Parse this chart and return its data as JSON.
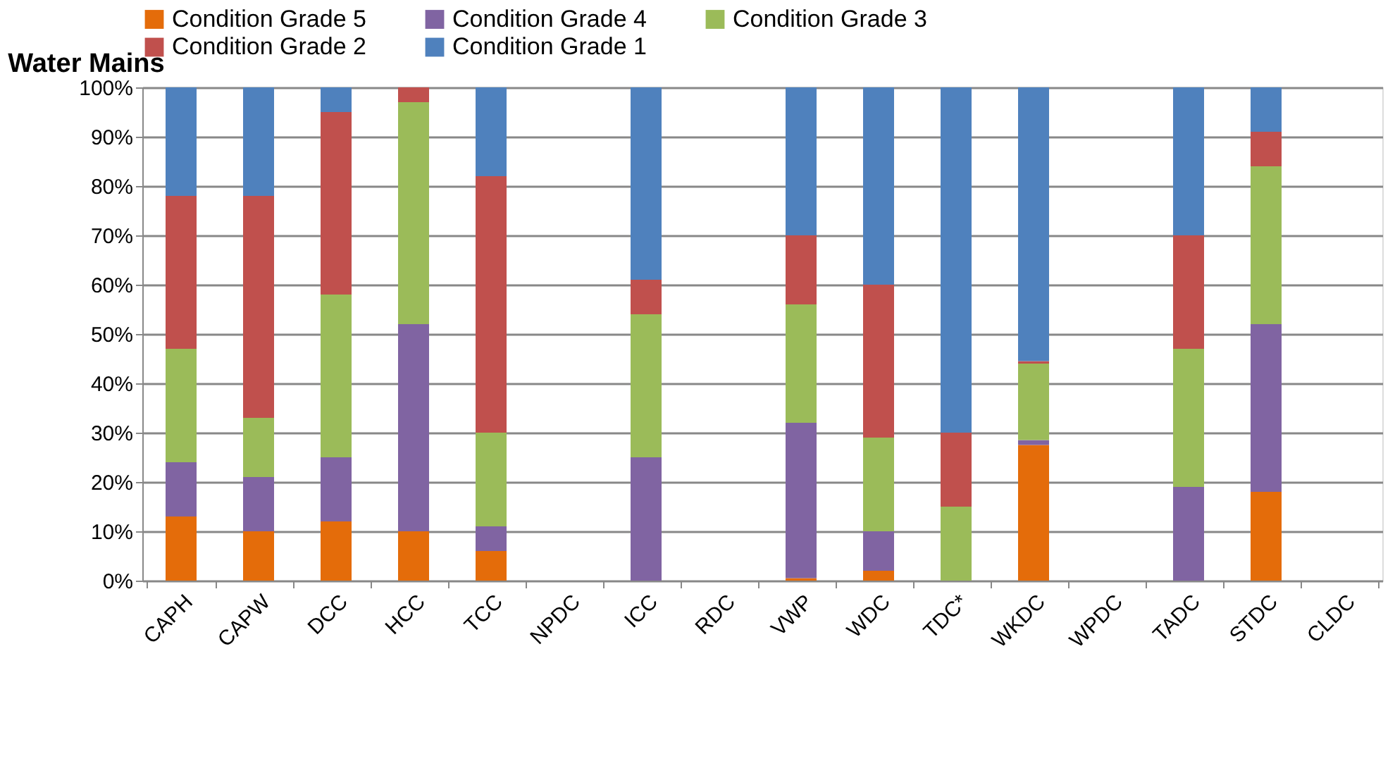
{
  "chart_data": {
    "type": "bar",
    "title": "Water Mains",
    "stacked": true,
    "legend": "top",
    "grid": "y",
    "categories": [
      "CAPH",
      "CAPW",
      "DCC",
      "HCC",
      "TCC",
      "NPDC",
      "ICC",
      "RDC",
      "VWP",
      "WDC",
      "TDC*",
      "WKDC",
      "WPDC",
      "TADC",
      "STDC",
      "CLDC"
    ],
    "series": [
      {
        "name": "Condition Grade 5",
        "color": "#e46c0a",
        "values": [
          13,
          10,
          12,
          10,
          6,
          null,
          0,
          null,
          0.5,
          2,
          0,
          27.5,
          null,
          0,
          18,
          null
        ]
      },
      {
        "name": "Condition Grade 4",
        "color": "#8064a2",
        "values": [
          11,
          11,
          13,
          42,
          5,
          null,
          25,
          null,
          31.5,
          8,
          0,
          1,
          null,
          19,
          34,
          null
        ]
      },
      {
        "name": "Condition Grade 3",
        "color": "#9bbb59",
        "values": [
          23,
          12,
          33,
          45,
          19,
          null,
          29,
          null,
          24,
          19,
          15,
          15.5,
          null,
          28,
          32,
          null
        ]
      },
      {
        "name": "Condition Grade 2",
        "color": "#c0504d",
        "values": [
          31,
          45,
          37,
          3,
          52,
          null,
          7,
          null,
          14,
          31,
          15,
          0.5,
          null,
          23,
          7,
          null
        ]
      },
      {
        "name": "Condition Grade 1",
        "color": "#4f81bd",
        "values": [
          22,
          22,
          5,
          0,
          18,
          null,
          39,
          null,
          30,
          40,
          70,
          55.5,
          null,
          30,
          9,
          null
        ]
      }
    ],
    "ylim": [
      0,
      100
    ],
    "yticks": [
      {
        "value": 0,
        "label": "0%"
      },
      {
        "value": 10,
        "label": "10%"
      },
      {
        "value": 20,
        "label": "20%"
      },
      {
        "value": 30,
        "label": "30%"
      },
      {
        "value": 40,
        "label": "40%"
      },
      {
        "value": 50,
        "label": "50%"
      },
      {
        "value": 60,
        "label": "60%"
      },
      {
        "value": 70,
        "label": "70%"
      },
      {
        "value": 80,
        "label": "80%"
      },
      {
        "value": 90,
        "label": "90%"
      },
      {
        "value": 100,
        "label": "100%"
      }
    ]
  }
}
